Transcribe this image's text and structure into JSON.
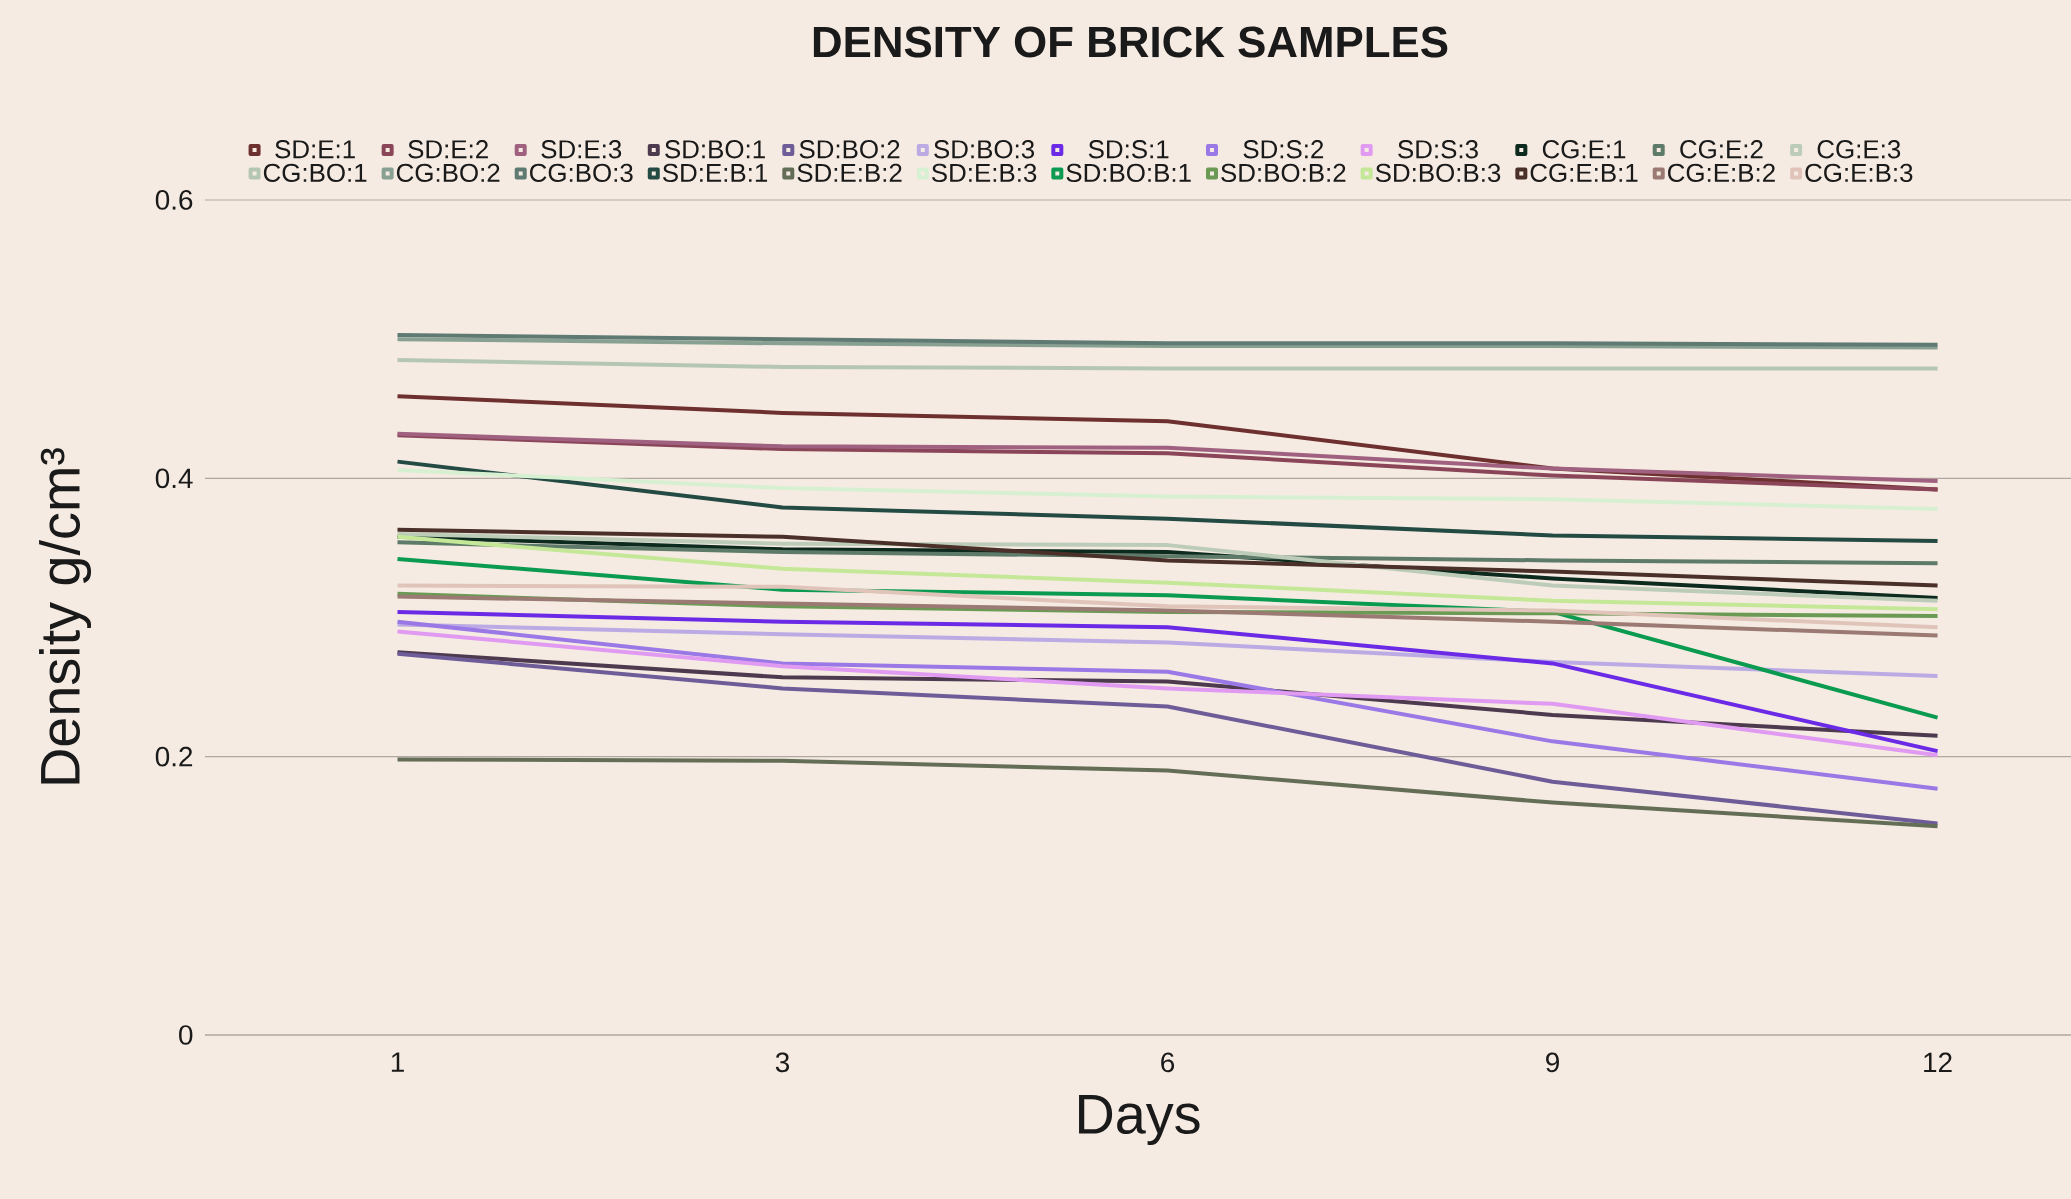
{
  "chart_data": {
    "type": "line",
    "title": "DENSITY OF BRICK SAMPLES",
    "xlabel": "Days",
    "ylabel": "Density g/cm³",
    "categories": [
      "1",
      "3",
      "6",
      "9",
      "12"
    ],
    "ylim": [
      0,
      0.6
    ],
    "yticks": [
      0,
      0.2,
      0.4,
      0.6
    ],
    "grid": "y",
    "legend": "top",
    "series": [
      {
        "name": "SD:E:1",
        "color": "#6e2f2f",
        "values": [
          0.459,
          0.447,
          0.441,
          0.407,
          0.392
        ]
      },
      {
        "name": "SD:E:2",
        "color": "#8a4558",
        "values": [
          0.431,
          0.421,
          0.418,
          0.402,
          0.392
        ]
      },
      {
        "name": "SD:E:3",
        "color": "#a0607f",
        "values": [
          0.432,
          0.423,
          0.422,
          0.407,
          0.398
        ]
      },
      {
        "name": "SD:BO:1",
        "color": "#4e3a4e",
        "values": [
          0.275,
          0.257,
          0.254,
          0.23,
          0.215
        ]
      },
      {
        "name": "SD:BO:2",
        "color": "#6e5c98",
        "values": [
          0.274,
          0.249,
          0.236,
          0.182,
          0.152
        ]
      },
      {
        "name": "SD:BO:3",
        "color": "#bcaae4",
        "values": [
          0.295,
          0.288,
          0.282,
          0.268,
          0.258
        ]
      },
      {
        "name": "SD:S:1",
        "color": "#6a2ae6",
        "values": [
          0.304,
          0.297,
          0.293,
          0.267,
          0.204
        ]
      },
      {
        "name": "SD:S:2",
        "color": "#9a78e6",
        "values": [
          0.297,
          0.267,
          0.261,
          0.211,
          0.177
        ]
      },
      {
        "name": "SD:S:3",
        "color": "#e09af2",
        "values": [
          0.29,
          0.265,
          0.249,
          0.238,
          0.201
        ]
      },
      {
        "name": "CG:E:1",
        "color": "#0c2a1e",
        "values": [
          0.358,
          0.349,
          0.347,
          0.328,
          0.314
        ]
      },
      {
        "name": "CG:E:2",
        "color": "#5e7a68",
        "values": [
          0.354,
          0.347,
          0.344,
          0.341,
          0.339
        ]
      },
      {
        "name": "CG:E:3",
        "color": "#bcccb8",
        "values": [
          0.36,
          0.353,
          0.352,
          0.323,
          0.312
        ]
      },
      {
        "name": "CG:BO:1",
        "color": "#b5c7b3",
        "values": [
          0.485,
          0.48,
          0.479,
          0.479,
          0.479
        ]
      },
      {
        "name": "CG:BO:2",
        "color": "#88a092",
        "values": [
          0.5,
          0.497,
          0.495,
          0.495,
          0.494
        ]
      },
      {
        "name": "CG:BO:3",
        "color": "#5f7a72",
        "values": [
          0.503,
          0.5,
          0.497,
          0.497,
          0.496
        ]
      },
      {
        "name": "SD:E:B:1",
        "color": "#244a44",
        "values": [
          0.412,
          0.379,
          0.371,
          0.359,
          0.355
        ]
      },
      {
        "name": "SD:E:B:2",
        "color": "#646e56",
        "values": [
          0.198,
          0.197,
          0.19,
          0.167,
          0.15
        ]
      },
      {
        "name": "SD:E:B:3",
        "color": "#d8f0d2",
        "values": [
          0.406,
          0.393,
          0.387,
          0.385,
          0.378
        ]
      },
      {
        "name": "SD:BO:B:1",
        "color": "#0a9a50",
        "values": [
          0.342,
          0.32,
          0.316,
          0.304,
          0.228
        ]
      },
      {
        "name": "SD:BO:B:2",
        "color": "#6a9a54",
        "values": [
          0.317,
          0.308,
          0.304,
          0.303,
          0.301
        ]
      },
      {
        "name": "SD:BO:B:3",
        "color": "#c4e898",
        "values": [
          0.358,
          0.335,
          0.325,
          0.312,
          0.306
        ]
      },
      {
        "name": "CG:E:B:1",
        "color": "#4a3028",
        "values": [
          0.363,
          0.358,
          0.341,
          0.333,
          0.323
        ]
      },
      {
        "name": "CG:E:B:2",
        "color": "#9a7a72",
        "values": [
          0.315,
          0.31,
          0.305,
          0.297,
          0.287
        ]
      },
      {
        "name": "CG:E:B:3",
        "color": "#e0c4ba",
        "values": [
          0.323,
          0.322,
          0.308,
          0.305,
          0.293
        ]
      }
    ]
  }
}
